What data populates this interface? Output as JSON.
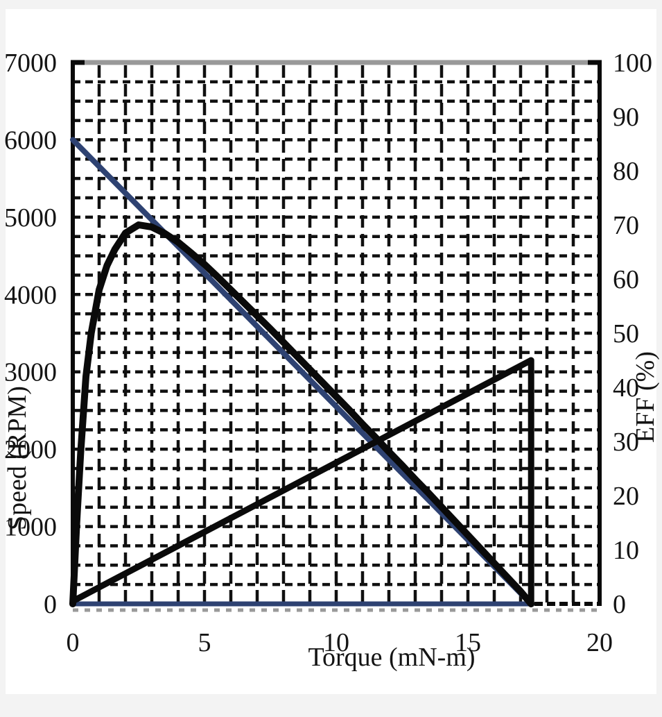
{
  "page": {
    "outer_background": "#f3f3f3",
    "canvas_background": "#ffffff"
  },
  "chart_data": {
    "type": "line",
    "title": "",
    "xlabel": "Torque (mN-m)",
    "ylabel_left": "Speed (RPM)",
    "ylabel_right": "EFF (%)",
    "legend": "none",
    "x_axis": {
      "min": 0,
      "max": 20,
      "ticks": [
        0,
        5,
        10,
        15,
        20
      ]
    },
    "y_axis_left": {
      "min": 0,
      "max": 7000,
      "ticks": [
        0,
        1000,
        2000,
        3000,
        4000,
        5000,
        6000,
        7000
      ]
    },
    "y_axis_right": {
      "min": 0,
      "max": 100,
      "ticks": [
        0,
        10,
        20,
        30,
        40,
        50,
        60,
        70,
        80,
        90,
        100
      ]
    },
    "grid": {
      "on": true,
      "style": "dashed",
      "color": "#101010",
      "x_step_torque": 1,
      "y_step_rpm": 250
    },
    "frame": {
      "axis_color": "#0a0a0a",
      "top_border_color": "#999999",
      "minor_tick_strip_color": "#9a9a9a"
    },
    "series": [
      {
        "name": "speed-torque-line",
        "axis": "left",
        "color": "#2e4272",
        "width": 8,
        "points": [
          [
            0,
            6000
          ],
          [
            17.4,
            0
          ]
        ]
      },
      {
        "name": "zero-baseline",
        "axis": "left",
        "color": "#2e4272",
        "width": 7,
        "points": [
          [
            0,
            0
          ],
          [
            17.4,
            0
          ]
        ]
      },
      {
        "name": "efficiency-curve",
        "axis": "right",
        "color": "#0a0a0a",
        "width": 10,
        "points": [
          [
            0,
            0
          ],
          [
            0.15,
            15
          ],
          [
            0.3,
            28
          ],
          [
            0.5,
            42
          ],
          [
            0.7,
            50
          ],
          [
            1.0,
            58
          ],
          [
            1.3,
            62.5
          ],
          [
            1.6,
            65.5
          ],
          [
            2.0,
            68.5
          ],
          [
            2.5,
            70
          ],
          [
            3.0,
            69.6
          ],
          [
            3.5,
            68.4
          ],
          [
            4.0,
            66.8
          ],
          [
            4.5,
            64.8
          ],
          [
            5.0,
            62.7
          ],
          [
            5.5,
            60.4
          ],
          [
            6.0,
            58
          ],
          [
            6.5,
            55.6
          ],
          [
            7.0,
            53.2
          ],
          [
            7.5,
            50.8
          ],
          [
            8.0,
            48.3
          ],
          [
            8.5,
            45.8
          ],
          [
            9.0,
            43.3
          ],
          [
            9.5,
            40.8
          ],
          [
            10,
            38.3
          ],
          [
            10.5,
            35.8
          ],
          [
            11,
            33.2
          ],
          [
            11.5,
            30.7
          ],
          [
            12,
            28.1
          ],
          [
            12.5,
            25.6
          ],
          [
            13,
            23
          ],
          [
            13.5,
            20.5
          ],
          [
            14,
            17.9
          ],
          [
            14.5,
            15.3
          ],
          [
            15,
            12.7
          ],
          [
            15.5,
            10.1
          ],
          [
            16,
            7.5
          ],
          [
            16.5,
            4.9
          ],
          [
            17,
            2.3
          ],
          [
            17.4,
            0
          ]
        ]
      },
      {
        "name": "rising-envelope-line",
        "axis": "right",
        "color": "#0a0a0a",
        "width": 9,
        "points": [
          [
            0,
            0.5
          ],
          [
            17.4,
            45
          ],
          [
            17.4,
            0
          ]
        ]
      }
    ]
  }
}
